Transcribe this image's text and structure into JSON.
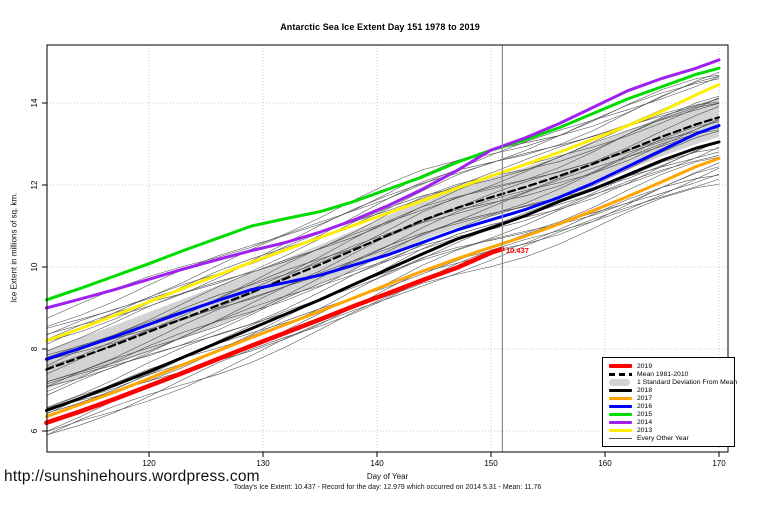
{
  "page": {
    "title": "Antarctic Sea Ice Extent Day 151 1978 to 2019",
    "url_watermark": "http://sunshinehours.wordpress.com",
    "footer_stats": "Today's Ice Extent: 10.437  - Record for the day: 12.979 which occurred on 2014 5.31  - Mean: 11.76"
  },
  "chart_data": {
    "type": "line",
    "title": "Antarctic Sea Ice Extent Day 151 1978 to 2019",
    "xlabel": "Day of Year",
    "ylabel": "Ice Extent in millions of sq. km.",
    "xlim": [
      111,
      171
    ],
    "ylim": [
      5.4,
      15.5
    ],
    "xticks": [
      120,
      130,
      140,
      150,
      160,
      170
    ],
    "yticks": [
      6,
      8,
      10,
      12,
      14
    ],
    "grid": "dotted",
    "marker_line_x": 151,
    "annotation": {
      "text": "10.437",
      "x": 151.4,
      "y": 10.437,
      "color": "#FF0000"
    },
    "x": [
      111,
      114,
      117,
      120,
      123,
      126,
      129,
      132,
      135,
      138,
      141,
      144,
      147,
      150,
      153,
      156,
      159,
      162,
      165,
      168,
      170
    ],
    "series": [
      {
        "name": "Mean 1981-2010",
        "color": "#000000",
        "width": 2.2,
        "dash": "7,4",
        "values": [
          7.5,
          7.8,
          8.1,
          8.42,
          8.74,
          9.06,
          9.38,
          9.72,
          10.06,
          10.42,
          10.78,
          11.14,
          11.44,
          11.7,
          11.95,
          12.22,
          12.52,
          12.85,
          13.18,
          13.48,
          13.65
        ]
      },
      {
        "name": "2013",
        "color": "#FFEE00",
        "width": 3,
        "values": [
          8.2,
          8.5,
          8.82,
          9.15,
          9.48,
          9.8,
          10.12,
          10.42,
          10.72,
          11.02,
          11.32,
          11.62,
          11.92,
          12.22,
          12.5,
          12.8,
          13.12,
          13.45,
          13.8,
          14.2,
          14.45
        ]
      },
      {
        "name": "2015",
        "color": "#00DC00",
        "width": 3,
        "values": [
          9.2,
          9.48,
          9.78,
          10.08,
          10.4,
          10.7,
          11.0,
          11.18,
          11.35,
          11.6,
          11.9,
          12.2,
          12.55,
          12.85,
          13.1,
          13.4,
          13.75,
          14.1,
          14.4,
          14.7,
          14.85
        ]
      },
      {
        "name": "2014",
        "color": "#A020F0",
        "width": 3,
        "values": [
          9.0,
          9.22,
          9.45,
          9.7,
          9.95,
          10.18,
          10.4,
          10.6,
          10.85,
          11.15,
          11.5,
          11.9,
          12.35,
          12.85,
          13.15,
          13.5,
          13.9,
          14.3,
          14.6,
          14.85,
          15.05
        ]
      },
      {
        "name": "2016",
        "color": "#0000FF",
        "width": 3,
        "values": [
          7.75,
          8.02,
          8.3,
          8.6,
          8.9,
          9.18,
          9.45,
          9.62,
          9.8,
          10.05,
          10.3,
          10.6,
          10.9,
          11.15,
          11.4,
          11.7,
          12.05,
          12.45,
          12.85,
          13.25,
          13.45
        ]
      },
      {
        "name": "2018",
        "color": "#000000",
        "width": 3,
        "values": [
          6.5,
          6.8,
          7.12,
          7.45,
          7.8,
          8.15,
          8.5,
          8.85,
          9.2,
          9.58,
          9.95,
          10.32,
          10.68,
          10.95,
          11.25,
          11.6,
          11.9,
          12.25,
          12.6,
          12.9,
          13.05
        ]
      },
      {
        "name": "2017",
        "color": "#FFA500",
        "width": 3,
        "values": [
          6.35,
          6.65,
          6.95,
          7.28,
          7.62,
          7.95,
          8.28,
          8.6,
          8.92,
          9.25,
          9.58,
          9.9,
          10.2,
          10.48,
          10.75,
          11.05,
          11.38,
          11.72,
          12.08,
          12.45,
          12.65
        ]
      },
      {
        "name": "2019",
        "color": "#FF0000",
        "width": 4.5,
        "x": [
          111,
          114,
          117,
          120,
          123,
          126,
          129,
          132,
          135,
          138,
          141,
          144,
          147,
          150,
          151
        ],
        "values": [
          6.2,
          6.48,
          6.78,
          7.1,
          7.42,
          7.75,
          8.08,
          8.4,
          8.72,
          9.05,
          9.36,
          9.68,
          9.98,
          10.35,
          10.437
        ]
      }
    ],
    "band": {
      "name": "1 Standard Deviation From Mean",
      "around": "Mean 1981-2010",
      "half_width": 0.48,
      "color": "#D3D3D3"
    },
    "background_years": {
      "name": "Every Other Year",
      "count": 34,
      "color": "#303030",
      "offset_min": -1.6,
      "offset_max": 1.15
    }
  },
  "legend": {
    "entries": [
      {
        "label": "2019",
        "swatch": "thick-line",
        "color": "#FF0000"
      },
      {
        "label": "Mean 1981-2010",
        "swatch": "dashed-line",
        "color": "#000000"
      },
      {
        "label": "1 Standard Deviation From Mean",
        "swatch": "band",
        "color": "#D3D3D3"
      },
      {
        "label": "2018",
        "swatch": "line",
        "color": "#000000"
      },
      {
        "label": "2017",
        "swatch": "line",
        "color": "#FFA500"
      },
      {
        "label": "2016",
        "swatch": "line",
        "color": "#0000FF"
      },
      {
        "label": "2015",
        "swatch": "line",
        "color": "#00DC00"
      },
      {
        "label": "2014",
        "swatch": "line",
        "color": "#A020F0"
      },
      {
        "label": "2013",
        "swatch": "line",
        "color": "#FFEE00"
      },
      {
        "label": "Every Other Year",
        "swatch": "thin-line",
        "color": "#555555"
      }
    ]
  }
}
